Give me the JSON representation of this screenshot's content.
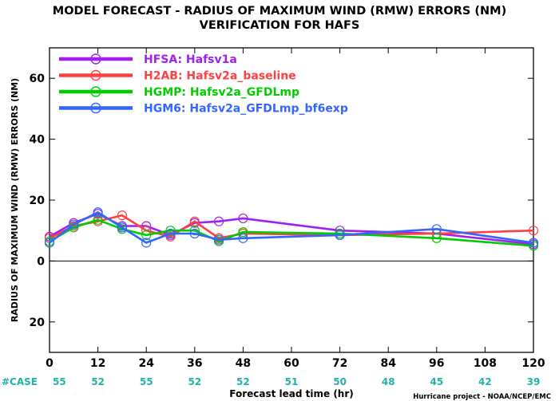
{
  "chart_data": {
    "type": "line",
    "title": "MODEL FORECAST - RADIUS OF MAXIMUM WIND (RMW) ERRORS (NM)",
    "subtitle": "VERIFICATION FOR HAFS",
    "xlabel": "Forecast lead time (hr)",
    "ylabel": "RADIUS OF MAXIMUM WIND (RMW) ERRORS (NM)",
    "credit": "Hurricane project - NOAA/NCEP/EMC",
    "xlim": [
      0,
      120
    ],
    "ylim": [
      -30,
      70
    ],
    "x_ticks": [
      0,
      12,
      24,
      36,
      48,
      60,
      72,
      84,
      96,
      108,
      120
    ],
    "y_ticks": [
      0,
      20,
      40,
      60
    ],
    "y_tick_labels": [
      "0",
      "20",
      "40",
      "60"
    ],
    "y_tick_label_neg20": "20",
    "zero_line": true,
    "grid": false,
    "legend_position": "top-left",
    "cases_label": "#CASE",
    "cases": [
      55,
      52,
      55,
      52,
      52,
      51,
      50,
      48,
      45,
      42,
      39
    ],
    "series": [
      {
        "name": "HFSA:  Hafsv1a",
        "color": "#a020f0",
        "x": [
          0,
          6,
          12,
          18,
          24,
          30,
          36,
          42,
          48,
          72,
          96,
          120
        ],
        "y": [
          8,
          12.5,
          15.5,
          11.5,
          11.5,
          8.5,
          12.5,
          13,
          14,
          10,
          9,
          5.5
        ]
      },
      {
        "name": "H2AB:  Hafsv2a_baseline",
        "color": "#ff4040",
        "x": [
          0,
          6,
          12,
          18,
          24,
          30,
          36,
          42,
          48,
          72,
          96,
          120
        ],
        "y": [
          7.5,
          11.5,
          13,
          15,
          10,
          8,
          13,
          7.5,
          9,
          8.5,
          9,
          10
        ]
      },
      {
        "name": "HGMP:  Hafsv2a_GFDLmp",
        "color": "#00cc00",
        "x": [
          0,
          6,
          12,
          18,
          24,
          30,
          36,
          42,
          48,
          72,
          96,
          120
        ],
        "y": [
          6.5,
          11,
          13.5,
          10.5,
          8.5,
          10,
          10,
          6.5,
          9.5,
          9,
          7.5,
          5
        ]
      },
      {
        "name": "HGM6:  Hafsv2a_GFDLmp_bf6exp",
        "color": "#3366ff",
        "x": [
          0,
          6,
          12,
          18,
          24,
          30,
          36,
          42,
          48,
          72,
          96,
          120
        ],
        "y": [
          6,
          12,
          16,
          11,
          6,
          9,
          9,
          7,
          7.5,
          8.5,
          10.5,
          6
        ]
      }
    ]
  }
}
